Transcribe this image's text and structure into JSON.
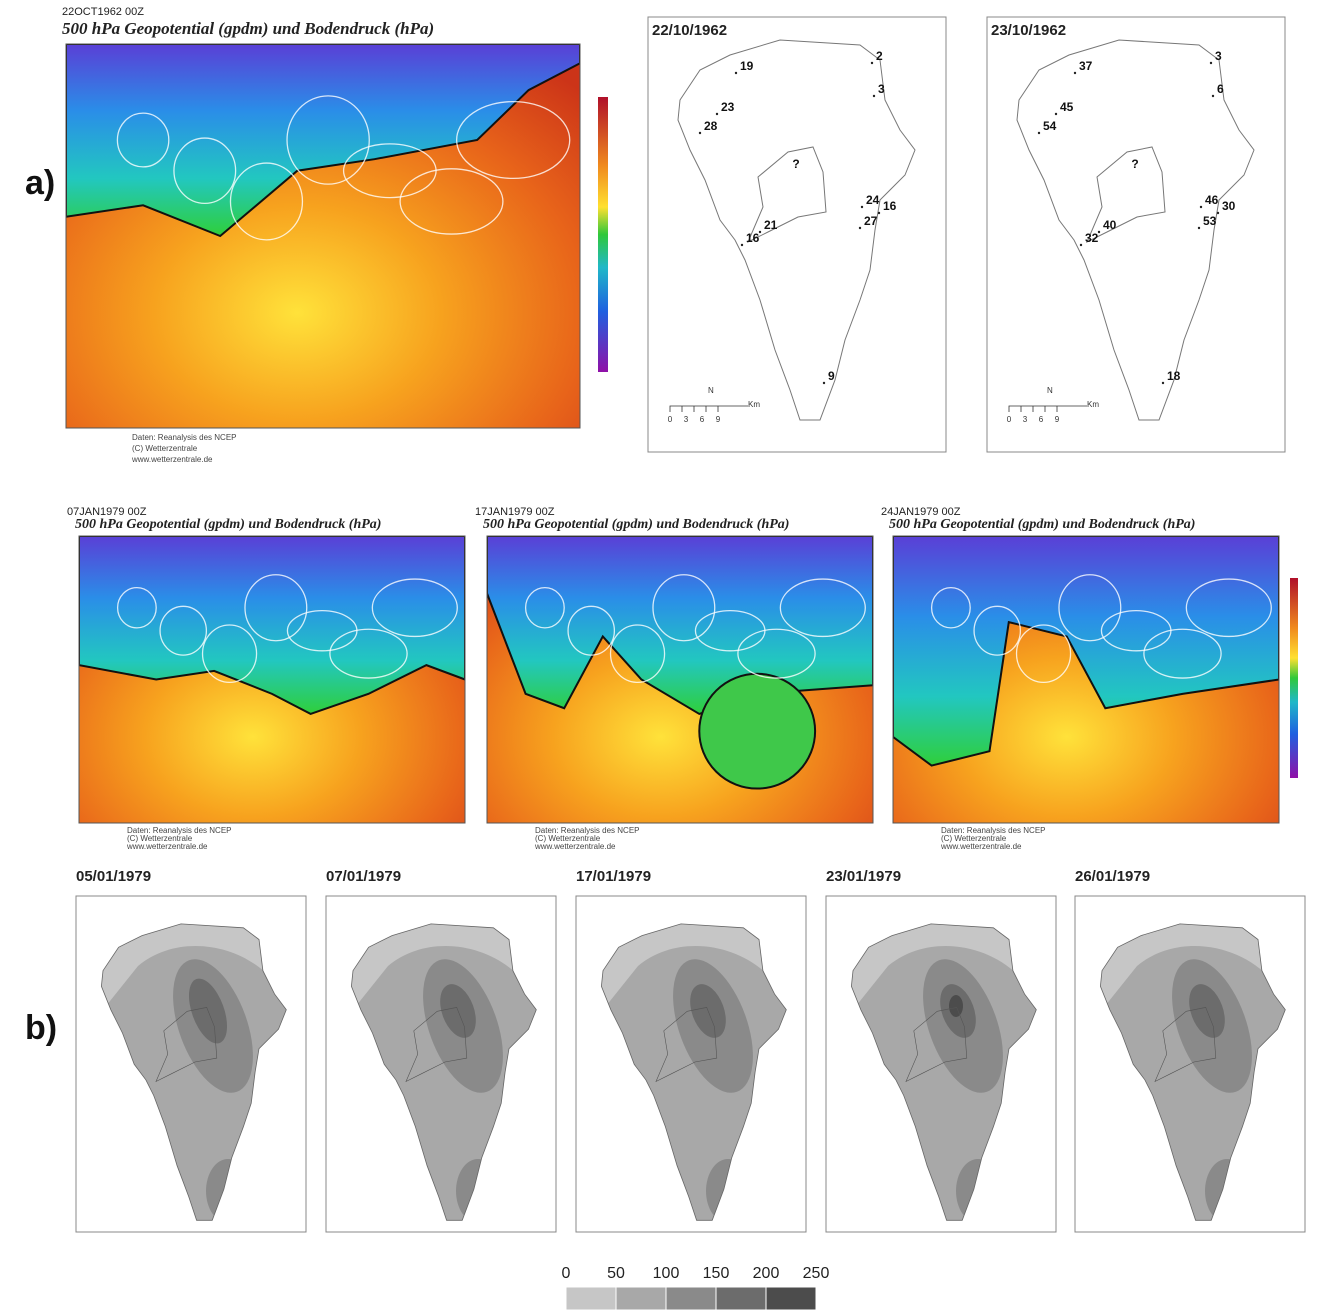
{
  "panel_a": {
    "label": "a)",
    "weather_map": {
      "header": "22OCT1962 00Z",
      "title": "500 hPa Geopotential (gpdm) und Bodendruck (hPa)",
      "credits": [
        "Daten: Reanalysis des NCEP",
        "(C) Wetterzentrale",
        "www.wetterzentrale.de"
      ]
    },
    "station_maps": [
      {
        "date": "22/10/1962",
        "unknown": "?",
        "stations": [
          "19",
          "2",
          "3",
          "23",
          "28",
          "24",
          "16",
          "27",
          "21",
          "16",
          "9"
        ]
      },
      {
        "date": "23/10/1962",
        "unknown": "?",
        "stations": [
          "37",
          "3",
          "6",
          "45",
          "54",
          "46",
          "30",
          "53",
          "40",
          "32",
          "18"
        ]
      }
    ],
    "scale": {
      "ticks": [
        "0",
        "3",
        "6",
        "9"
      ],
      "unit": "Km",
      "north": "N"
    }
  },
  "panel_b": {
    "label": "b)",
    "weather_maps": [
      {
        "header": "07JAN1979 00Z",
        "title": "500 hPa Geopotential (gpdm) und Bodendruck (hPa)",
        "credits": [
          "Daten: Reanalysis des NCEP",
          "(C) Wetterzentrale",
          "www.wetterzentrale.de"
        ]
      },
      {
        "header": "17JAN1979 00Z",
        "title": "500 hPa Geopotential (gpdm) und Bodendruck (hPa)",
        "credits": [
          "Daten: Reanalysis des NCEP",
          "(C) Wetterzentrale",
          "www.wetterzentrale.de"
        ]
      },
      {
        "header": "24JAN1979 00Z",
        "title": "500 hPa Geopotential (gpdm) und Bodendruck (hPa)",
        "credits": [
          "Daten: Reanalysis des NCEP",
          "(C) Wetterzentrale",
          "www.wetterzentrale.de"
        ]
      }
    ],
    "rainfall_maps": [
      {
        "date": "05/01/1979"
      },
      {
        "date": "07/01/1979"
      },
      {
        "date": "17/01/1979"
      },
      {
        "date": "23/01/1979"
      },
      {
        "date": "26/01/1979"
      }
    ],
    "legend": {
      "ticks": [
        0,
        50,
        100,
        150,
        200,
        250
      ],
      "colors": [
        "#c6c6c6",
        "#a8a8a8",
        "#8a8a8a",
        "#6c6c6c",
        "#4c4c4c"
      ]
    }
  }
}
